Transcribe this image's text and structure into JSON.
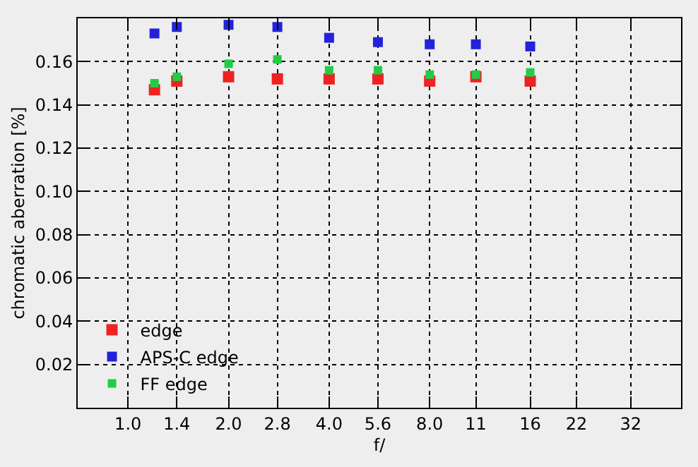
{
  "chart_data": {
    "type": "scatter",
    "xlabel": "f/",
    "ylabel": "chromatic aberration [%]",
    "x": [
      1.2,
      1.4,
      2.0,
      2.8,
      4.0,
      5.6,
      8.0,
      11,
      16
    ],
    "series": [
      {
        "name": "edge",
        "color": "#ee2222",
        "values": [
          0.147,
          0.151,
          0.153,
          0.152,
          0.152,
          0.152,
          0.151,
          0.153,
          0.151
        ]
      },
      {
        "name": "APS-C edge",
        "color": "#2222dd",
        "values": [
          0.173,
          0.176,
          0.177,
          0.176,
          0.171,
          0.169,
          0.168,
          0.168,
          0.167
        ]
      },
      {
        "name": "FF edge",
        "color": "#22cc44",
        "values": [
          0.15,
          0.153,
          0.159,
          0.161,
          0.156,
          0.156,
          0.154,
          0.154,
          0.155
        ]
      }
    ],
    "log": "x",
    "xlim": [
      0.707,
      45.25
    ],
    "xticks": [
      {
        "value": 1,
        "label": "1.0"
      },
      {
        "value": 1.4,
        "label": "1.4"
      },
      {
        "value": 2,
        "label": "2.0"
      },
      {
        "value": 2.8,
        "label": "2.8"
      },
      {
        "value": 4,
        "label": "4.0"
      },
      {
        "value": 5.6,
        "label": "5.6"
      },
      {
        "value": 8,
        "label": "8.0"
      },
      11,
      16,
      22,
      32
    ],
    "ylim": [
      0,
      0.18
    ],
    "yticks": [
      0.02,
      0.04,
      0.06,
      0.08,
      {
        "value": 0.1,
        "label": "0.10"
      },
      0.12,
      0.14,
      0.16
    ],
    "grid": true,
    "legend": "bottom left",
    "marker": "square"
  }
}
